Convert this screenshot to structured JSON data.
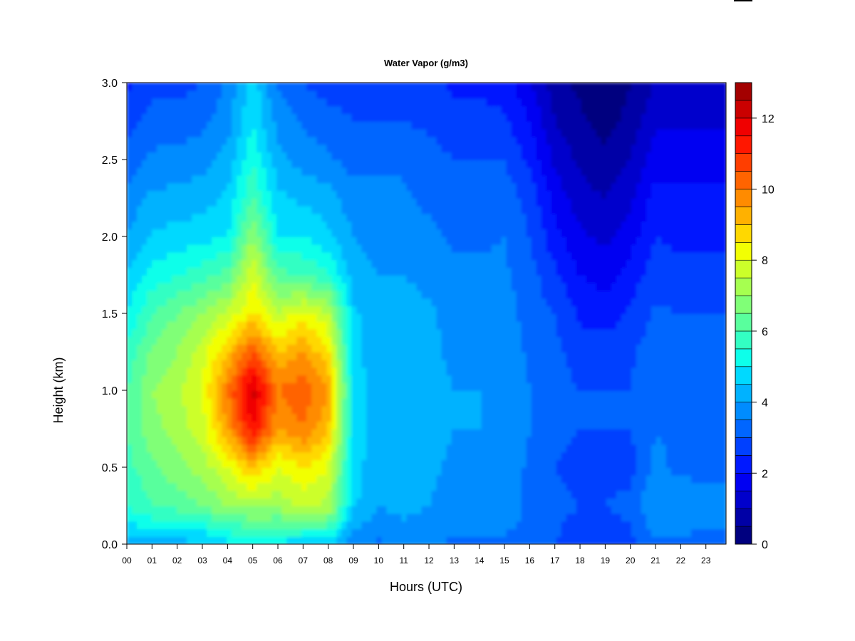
{
  "chart_data": {
    "type": "heatmap",
    "title": "Water Vapor (g/m3)",
    "xlabel": "Hours (UTC)",
    "ylabel": "Height (km)",
    "x_ticks": [
      "00",
      "01",
      "02",
      "03",
      "04",
      "05",
      "06",
      "07",
      "08",
      "09",
      "10",
      "11",
      "12",
      "13",
      "14",
      "15",
      "16",
      "17",
      "18",
      "19",
      "20",
      "21",
      "22",
      "23"
    ],
    "y_ticks": [
      "0.0",
      "0.5",
      "1.0",
      "1.5",
      "2.0",
      "2.5",
      "3.0"
    ],
    "xlim": [
      0,
      23.8
    ],
    "ylim": [
      0,
      3.0
    ],
    "colorbar": {
      "range": [
        0,
        13
      ],
      "ticks": [
        "0",
        "2",
        "4",
        "6",
        "8",
        "10",
        "12"
      ],
      "levels": 26,
      "colors": [
        "#00007f",
        "#0000a6",
        "#0000cc",
        "#0000f2",
        "#0019ff",
        "#0040ff",
        "#0066ff",
        "#008cff",
        "#00b2ff",
        "#00d9ff",
        "#0dffea",
        "#33ffc3",
        "#59ff9d",
        "#80ff77",
        "#a6ff50",
        "#ccff2a",
        "#f2ff03",
        "#ffd800",
        "#ffb100",
        "#ff8b00",
        "#ff6400",
        "#ff3e00",
        "#ff1700",
        "#f00000",
        "#ca0000",
        "#a30000",
        "#7f0000"
      ]
    },
    "grid": {
      "hours": [
        0,
        1,
        2,
        3,
        4,
        5,
        6,
        7,
        8,
        9,
        10,
        11,
        12,
        13,
        14,
        15,
        16,
        17,
        18,
        19,
        20,
        21,
        22,
        23
      ],
      "heights_km": [
        0.0,
        0.25,
        0.5,
        0.75,
        1.0,
        1.25,
        1.5,
        1.75,
        2.0,
        2.25,
        2.5,
        2.75,
        3.0
      ],
      "values": [
        [
          4.3,
          4.3,
          4.3,
          4.3,
          4.8,
          5.0,
          4.8,
          4.6,
          4.6,
          3.6,
          3.4,
          3.6,
          3.6,
          3.4,
          3.4,
          3.4,
          3.3,
          3.0,
          2.6,
          2.6,
          2.8,
          3.4,
          3.4,
          3.4
        ],
        [
          5.5,
          6.0,
          6.2,
          6.5,
          7.0,
          7.2,
          7.2,
          7.6,
          7.4,
          4.6,
          4.0,
          4.2,
          4.0,
          3.8,
          3.8,
          3.8,
          3.4,
          3.2,
          3.0,
          3.0,
          3.2,
          4.0,
          3.8,
          3.6
        ],
        [
          5.8,
          6.4,
          6.8,
          7.2,
          8.0,
          9.0,
          8.0,
          8.5,
          8.0,
          4.7,
          4.2,
          4.3,
          4.1,
          3.9,
          3.9,
          3.8,
          3.4,
          3.0,
          2.8,
          2.8,
          2.8,
          3.6,
          3.4,
          3.4
        ],
        [
          6.0,
          6.8,
          7.2,
          7.8,
          9.5,
          11.5,
          9.5,
          10.0,
          9.0,
          4.8,
          4.3,
          4.4,
          4.2,
          4.0,
          4.0,
          3.9,
          3.5,
          3.2,
          3.0,
          3.0,
          3.0,
          3.5,
          3.4,
          3.4
        ],
        [
          6.0,
          7.0,
          7.4,
          8.0,
          10.0,
          12.2,
          10.0,
          10.4,
          9.5,
          4.8,
          4.3,
          4.4,
          4.2,
          4.0,
          4.0,
          3.9,
          3.5,
          3.2,
          3.0,
          3.0,
          3.0,
          3.4,
          3.3,
          3.3
        ],
        [
          5.6,
          6.6,
          7.0,
          7.8,
          9.0,
          10.5,
          9.0,
          9.5,
          8.6,
          4.6,
          4.2,
          4.3,
          4.1,
          3.9,
          3.9,
          3.8,
          3.4,
          3.1,
          2.8,
          2.8,
          2.9,
          3.3,
          3.2,
          3.2
        ],
        [
          5.0,
          6.0,
          6.5,
          7.0,
          7.6,
          8.6,
          7.6,
          8.2,
          7.6,
          4.6,
          4.2,
          4.3,
          4.1,
          3.8,
          3.8,
          3.7,
          3.3,
          3.0,
          2.4,
          2.2,
          2.6,
          3.1,
          3.0,
          3.0
        ],
        [
          4.5,
          5.2,
          5.5,
          5.8,
          6.2,
          8.0,
          6.2,
          6.0,
          5.6,
          4.2,
          4.0,
          4.0,
          3.8,
          3.6,
          3.6,
          3.6,
          3.2,
          2.6,
          2.0,
          1.8,
          2.2,
          2.8,
          2.6,
          2.6
        ],
        [
          4.0,
          4.6,
          4.7,
          4.8,
          5.0,
          7.0,
          5.0,
          5.0,
          4.6,
          4.0,
          3.8,
          3.8,
          3.6,
          3.4,
          3.4,
          3.5,
          3.0,
          2.2,
          1.6,
          1.4,
          1.8,
          2.5,
          2.4,
          2.4
        ],
        [
          3.7,
          4.1,
          4.2,
          4.3,
          4.6,
          6.0,
          4.6,
          4.4,
          4.2,
          3.7,
          3.6,
          3.6,
          3.4,
          3.2,
          3.2,
          3.3,
          2.8,
          1.8,
          1.2,
          1.0,
          1.4,
          2.2,
          2.1,
          2.1
        ],
        [
          3.2,
          3.6,
          3.7,
          3.8,
          4.2,
          5.4,
          4.2,
          3.8,
          3.6,
          3.3,
          3.4,
          3.4,
          3.2,
          3.0,
          3.0,
          3.0,
          2.4,
          1.4,
          0.9,
          0.6,
          1.0,
          1.8,
          1.8,
          1.8
        ],
        [
          2.8,
          3.2,
          3.2,
          3.4,
          3.8,
          5.0,
          3.8,
          3.4,
          3.2,
          3.0,
          3.0,
          3.0,
          2.9,
          2.7,
          2.7,
          2.6,
          2.0,
          1.0,
          0.6,
          0.3,
          0.7,
          1.4,
          1.4,
          1.4
        ],
        [
          2.4,
          2.8,
          2.8,
          3.0,
          3.6,
          4.8,
          3.4,
          3.0,
          2.8,
          2.7,
          2.7,
          2.7,
          2.6,
          2.4,
          2.4,
          2.2,
          1.6,
          0.7,
          0.4,
          0.1,
          0.5,
          1.0,
          1.0,
          1.0
        ]
      ]
    }
  }
}
